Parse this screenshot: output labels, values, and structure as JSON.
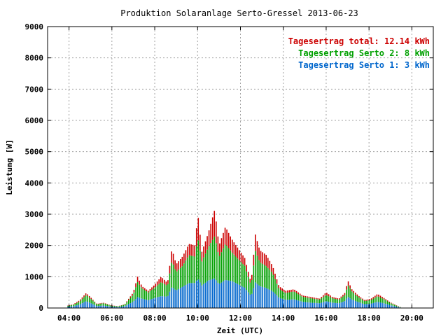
{
  "chart_data": {
    "type": "bar",
    "stacked": true,
    "title": "Produktion Solaranlage Serto-Gressel 2013-06-23",
    "xlabel": "Zeit (UTC)",
    "ylabel": "Leistung [W]",
    "ylim": [
      0,
      9000
    ],
    "xlim_hours": [
      3.0,
      21.0
    ],
    "grid": true,
    "legend_position": "top-right",
    "x_ticks": [
      "04:00",
      "06:00",
      "08:00",
      "10:00",
      "12:00",
      "14:00",
      "16:00",
      "18:00",
      "20:00"
    ],
    "y_ticks": [
      "0",
      "1000",
      "2000",
      "3000",
      "4000",
      "5000",
      "6000",
      "7000",
      "8000",
      "9000"
    ],
    "legend": [
      {
        "text": "Tagesertrag total: 12.14 kWh",
        "color": "#cc0000"
      },
      {
        "text": "Tagesertrag Serto 2: 8 kWh",
        "color": "#00a000"
      },
      {
        "text": "Tagesertrag Serto 1: 3 kWh",
        "color": "#0066cc"
      }
    ],
    "series_colors": {
      "serto1": "#0066cc",
      "serto2": "#00a000",
      "total": "#cc0000"
    },
    "profile_hours_utc": [
      3.95,
      4.2,
      4.5,
      4.8,
      5.0,
      5.3,
      5.6,
      6.0,
      6.3,
      6.6,
      7.0,
      7.2,
      7.4,
      7.7,
      8.0,
      8.3,
      8.6,
      8.8,
      9.0,
      9.3,
      9.6,
      9.9,
      10.0,
      10.2,
      10.5,
      10.8,
      11.0,
      11.3,
      11.6,
      11.9,
      12.2,
      12.5,
      12.7,
      12.9,
      13.2,
      13.5,
      13.8,
      14.1,
      14.5,
      14.9,
      15.3,
      15.7,
      16.0,
      16.3,
      16.6,
      16.9,
      17.0,
      17.2,
      17.5,
      17.8,
      18.1,
      18.4,
      18.7,
      19.0,
      19.3,
      19.5
    ],
    "profile_total_w": [
      80,
      120,
      250,
      480,
      350,
      130,
      170,
      80,
      60,
      120,
      500,
      1000,
      700,
      550,
      750,
      1000,
      800,
      1900,
      1400,
      1650,
      2050,
      2000,
      3100,
      1800,
      2400,
      3150,
      2000,
      2600,
      2200,
      1900,
      1600,
      800,
      2350,
      1850,
      1700,
      1350,
      700,
      550,
      600,
      400,
      350,
      300,
      500,
      350,
      300,
      500,
      900,
      600,
      400,
      250,
      300,
      450,
      320,
      180,
      80,
      20
    ],
    "profile_serto1_w": [
      40,
      60,
      110,
      220,
      160,
      60,
      80,
      40,
      30,
      60,
      200,
      350,
      300,
      250,
      320,
      380,
      360,
      680,
      560,
      680,
      800,
      800,
      950,
      720,
      880,
      950,
      760,
      900,
      860,
      760,
      650,
      380,
      820,
      700,
      640,
      540,
      330,
      260,
      280,
      200,
      170,
      150,
      220,
      170,
      150,
      230,
      370,
      270,
      190,
      120,
      140,
      200,
      150,
      90,
      40,
      10
    ],
    "profile_serto2_w": [
      30,
      45,
      100,
      200,
      150,
      55,
      75,
      30,
      25,
      50,
      230,
      480,
      330,
      250,
      330,
      450,
      340,
      830,
      590,
      670,
      890,
      840,
      1350,
      770,
      1060,
      1350,
      860,
      1150,
      920,
      800,
      700,
      330,
      1000,
      770,
      700,
      580,
      280,
      220,
      250,
      160,
      140,
      120,
      200,
      140,
      120,
      200,
      380,
      260,
      160,
      100,
      120,
      180,
      130,
      70,
      30,
      7
    ]
  }
}
